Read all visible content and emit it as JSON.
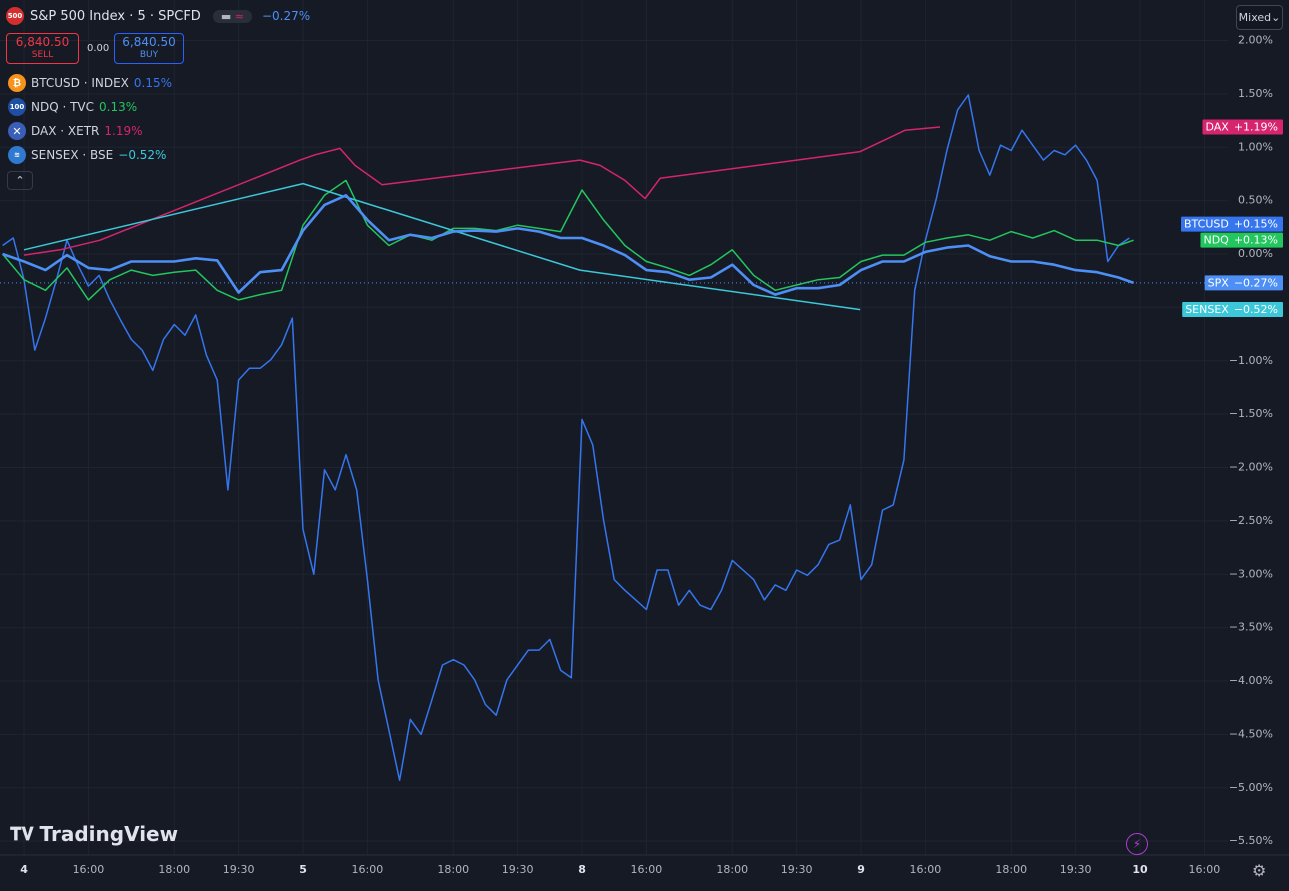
{
  "header": {
    "symbol_icon": "500",
    "title": "S&P 500 Index · 5 · SPCFD",
    "change": "−0.27%",
    "sell_price": "6,840.50",
    "sell_label": "SELL",
    "spread": "0.00",
    "buy_price": "6,840.50",
    "buy_label": "BUY"
  },
  "legend": [
    {
      "symbol": "BTCUSD · INDEX",
      "change": "0.15%"
    },
    {
      "icon": "100",
      "symbol": "NDQ · TVC",
      "change": "0.13%"
    },
    {
      "symbol": "DAX · XETR",
      "change": "1.19%"
    },
    {
      "symbol": "SENSEX · BSE",
      "change": "−0.52%"
    }
  ],
  "toolbar": {
    "mode": "Mixed"
  },
  "branding": "TradingView",
  "chart_data": {
    "type": "line",
    "xlim": [
      -0.56,
      28.05
    ],
    "ylim": [
      -5.63,
      2.38
    ],
    "xticks": [
      {
        "value": 0,
        "label": "4"
      },
      {
        "value": 1.5,
        "label": "16:00"
      },
      {
        "value": 3.5,
        "label": "18:00"
      },
      {
        "value": 5,
        "label": "19:30"
      },
      {
        "value": 6.5,
        "label": "5"
      },
      {
        "value": 8,
        "label": "16:00"
      },
      {
        "value": 10,
        "label": "18:00"
      },
      {
        "value": 11.5,
        "label": "19:30"
      },
      {
        "value": 13,
        "label": "8"
      },
      {
        "value": 14.5,
        "label": "16:00"
      },
      {
        "value": 16.5,
        "label": "18:00"
      },
      {
        "value": 18,
        "label": "19:30"
      },
      {
        "value": 19.5,
        "label": "9"
      },
      {
        "value": 21,
        "label": "16:00"
      },
      {
        "value": 23,
        "label": "18:00"
      },
      {
        "value": 24.5,
        "label": "19:30"
      },
      {
        "value": 26,
        "label": "10"
      },
      {
        "value": 27.5,
        "label": "16:00"
      }
    ],
    "yticks": [
      {
        "value": 2,
        "label": "2.00%"
      },
      {
        "value": 1.5,
        "label": "1.50%"
      },
      {
        "value": 1,
        "label": "1.00%"
      },
      {
        "value": 0.5,
        "label": "0.50%"
      },
      {
        "value": 0,
        "label": "0.00%"
      },
      {
        "value": -0.5,
        "label": "−0.50%"
      },
      {
        "value": -1,
        "label": "−1.00%"
      },
      {
        "value": -1.5,
        "label": "−1.50%"
      },
      {
        "value": -2,
        "label": "−2.00%"
      },
      {
        "value": -2.5,
        "label": "−2.50%"
      },
      {
        "value": -3,
        "label": "−3.00%"
      },
      {
        "value": -3.5,
        "label": "−3.50%"
      },
      {
        "value": -4,
        "label": "−4.00%"
      },
      {
        "value": -4.5,
        "label": "−4.50%"
      },
      {
        "value": -5,
        "label": "−5.00%"
      },
      {
        "value": -5.5,
        "label": "−5.50%"
      }
    ],
    "grid": true,
    "series": [
      {
        "name": "SPX",
        "color": "#4d8ff5",
        "width": 2.6,
        "price_label": "−0.27%",
        "x": [
          -0.5,
          0,
          0.5,
          1,
          1.5,
          2,
          2.5,
          3,
          3.5,
          4,
          4.5,
          5,
          5.5,
          6,
          6.5,
          7,
          7.5,
          8,
          8.5,
          9,
          9.5,
          10,
          10.5,
          11,
          11.5,
          12,
          12.5,
          13,
          13.5,
          14,
          14.5,
          15,
          15.5,
          16,
          16.5,
          17,
          17.5,
          18,
          18.5,
          19,
          19.5,
          20,
          20.5,
          21,
          21.5,
          22,
          22.5,
          23,
          23.5,
          24,
          24.5,
          25,
          25.5,
          25.85
        ],
        "values": [
          0,
          -0.07,
          -0.15,
          -0.01,
          -0.13,
          -0.15,
          -0.07,
          -0.07,
          -0.07,
          -0.04,
          -0.06,
          -0.36,
          -0.17,
          -0.15,
          0.22,
          0.46,
          0.55,
          0.32,
          0.13,
          0.18,
          0.15,
          0.21,
          0.22,
          0.21,
          0.24,
          0.21,
          0.15,
          0.15,
          0.08,
          -0.01,
          -0.15,
          -0.17,
          -0.24,
          -0.22,
          -0.1,
          -0.29,
          -0.38,
          -0.32,
          -0.32,
          -0.29,
          -0.15,
          -0.07,
          -0.07,
          0.02,
          0.06,
          0.08,
          -0.02,
          -0.07,
          -0.07,
          -0.1,
          -0.15,
          -0.17,
          -0.22,
          -0.27
        ]
      },
      {
        "name": "BTCUSD",
        "color": "#3575ee",
        "width": 1.5,
        "price_label": "+0.15%",
        "x": [
          -0.5,
          -0.25,
          0,
          0.25,
          0.5,
          0.75,
          1,
          1.25,
          1.5,
          1.75,
          2,
          2.25,
          2.5,
          2.75,
          3,
          3.25,
          3.5,
          3.75,
          4,
          4.25,
          4.5,
          4.75,
          5,
          5.25,
          5.5,
          5.75,
          6,
          6.25,
          6.5,
          6.75,
          7,
          7.25,
          7.5,
          7.75,
          8,
          8.25,
          8.5,
          8.75,
          9,
          9.25,
          9.5,
          9.75,
          10,
          10.25,
          10.5,
          10.75,
          11,
          11.25,
          11.5,
          11.75,
          12,
          12.25,
          12.5,
          12.75,
          13,
          13.25,
          13.5,
          13.75,
          14,
          14.25,
          14.5,
          14.75,
          15,
          15.25,
          15.5,
          15.75,
          16,
          16.25,
          16.5,
          16.75,
          17,
          17.25,
          17.5,
          17.75,
          18,
          18.25,
          18.5,
          18.75,
          19,
          19.25,
          19.5,
          19.75,
          20,
          20.25,
          20.5,
          20.75,
          21,
          21.25,
          21.5,
          21.75,
          22,
          22.25,
          22.5,
          22.75,
          23,
          23.25,
          23.5,
          23.75,
          24,
          24.25,
          24.5,
          24.75,
          25,
          25.25,
          25.5,
          25.75
        ],
        "values": [
          0.08,
          0.15,
          -0.24,
          -0.9,
          -0.6,
          -0.25,
          0.13,
          -0.1,
          -0.3,
          -0.2,
          -0.43,
          -0.62,
          -0.8,
          -0.9,
          -1.09,
          -0.8,
          -0.66,
          -0.76,
          -0.57,
          -0.95,
          -1.18,
          -2.21,
          -1.18,
          -1.07,
          -1.07,
          -0.99,
          -0.85,
          -0.6,
          -2.58,
          -3.0,
          -2.02,
          -2.21,
          -1.88,
          -2.21,
          -3.05,
          -3.99,
          -4.46,
          -4.93,
          -4.36,
          -4.5,
          -4.18,
          -3.85,
          -3.8,
          -3.85,
          -3.99,
          -4.22,
          -4.32,
          -3.99,
          -3.85,
          -3.71,
          -3.71,
          -3.61,
          -3.9,
          -3.97,
          -1.55,
          -1.79,
          -2.49,
          -3.05,
          -3.15,
          -3.24,
          -3.33,
          -2.96,
          -2.96,
          -3.29,
          -3.15,
          -3.29,
          -3.33,
          -3.15,
          -2.87,
          -2.96,
          -3.05,
          -3.24,
          -3.1,
          -3.15,
          -2.96,
          -3.01,
          -2.91,
          -2.72,
          -2.68,
          -2.35,
          -3.05,
          -2.91,
          -2.4,
          -2.35,
          -1.93,
          -0.34,
          0.13,
          0.51,
          0.97,
          1.35,
          1.49,
          0.97,
          0.74,
          1.02,
          0.97,
          1.16,
          1.02,
          0.88,
          0.97,
          0.93,
          1.02,
          0.88,
          0.69,
          -0.07,
          0.08,
          0.15
        ]
      },
      {
        "name": "NDQ",
        "color": "#22c55e",
        "width": 1.5,
        "price_label": "+0.13%",
        "x": [
          -0.5,
          0,
          0.5,
          1,
          1.5,
          2,
          2.5,
          3,
          3.5,
          4,
          4.5,
          5,
          5.5,
          6,
          6.5,
          7,
          7.5,
          8,
          8.5,
          9,
          9.5,
          10,
          10.5,
          11,
          11.5,
          12,
          12.5,
          13,
          13.5,
          14,
          14.5,
          15,
          15.5,
          16,
          16.5,
          17,
          17.5,
          18,
          18.5,
          19,
          19.5,
          20,
          20.5,
          21,
          21.5,
          22,
          22.5,
          23,
          23.5,
          24,
          24.5,
          25,
          25.5,
          25.85
        ],
        "values": [
          0,
          -0.24,
          -0.34,
          -0.13,
          -0.43,
          -0.24,
          -0.15,
          -0.2,
          -0.17,
          -0.15,
          -0.34,
          -0.43,
          -0.38,
          -0.34,
          0.27,
          0.55,
          0.69,
          0.27,
          0.08,
          0.18,
          0.13,
          0.24,
          0.24,
          0.22,
          0.27,
          0.24,
          0.21,
          0.6,
          0.32,
          0.08,
          -0.07,
          -0.13,
          -0.2,
          -0.1,
          0.04,
          -0.2,
          -0.34,
          -0.29,
          -0.24,
          -0.22,
          -0.07,
          -0.01,
          -0.01,
          0.11,
          0.15,
          0.18,
          0.13,
          0.21,
          0.15,
          0.22,
          0.13,
          0.13,
          0.08,
          0.13
        ]
      },
      {
        "name": "DAX",
        "color": "#d6246e",
        "width": 1.5,
        "price_label": "+1.19%",
        "x": [
          0,
          0.84,
          1.77,
          6.43,
          6.78,
          7.36,
          7.71,
          8.34,
          12.95,
          13.42,
          14,
          14.47,
          14.82,
          19.48,
          20.53,
          21.34
        ],
        "values": [
          -0.01,
          0.04,
          0.13,
          0.88,
          0.93,
          0.99,
          0.83,
          0.65,
          0.88,
          0.83,
          0.69,
          0.52,
          0.71,
          0.96,
          1.16,
          1.19
        ]
      },
      {
        "name": "SENSEX",
        "color": "#3cc8d8",
        "width": 1.5,
        "price_label": "−0.52%",
        "x": [
          0,
          6.5,
          12.95,
          19.48
        ],
        "values": [
          0.04,
          0.66,
          -0.15,
          -0.52
        ]
      }
    ]
  }
}
